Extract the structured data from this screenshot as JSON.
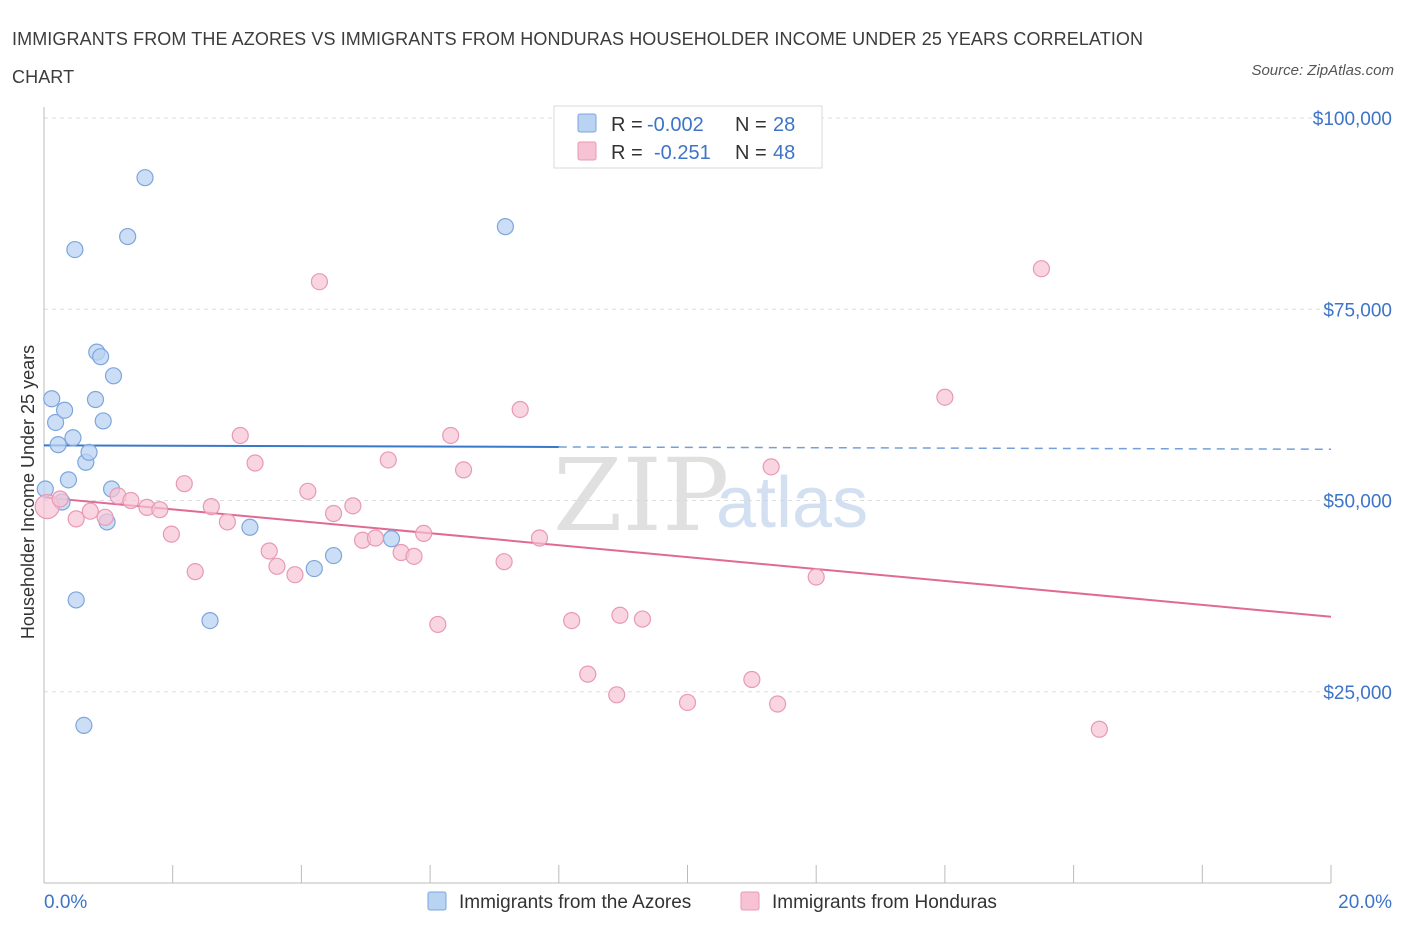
{
  "title": "IMMIGRANTS FROM THE AZORES VS IMMIGRANTS FROM HONDURAS HOUSEHOLDER INCOME UNDER 25 YEARS CORRELATION CHART",
  "source": "Source: ZipAtlas.com",
  "watermark": {
    "zip": "ZIP",
    "atlas": "atlas"
  },
  "colors": {
    "azores_fill": "#b9d3f3",
    "azores_stroke": "#7da6dc",
    "azores_line": "#3a78c9",
    "honduras_fill": "#f7c3d4",
    "honduras_stroke": "#e899b4",
    "honduras_line": "#e06a95",
    "tick_label": "#3d74c8",
    "grid": "#dddddd"
  },
  "legend": {
    "rows": [
      {
        "r_label": "R =",
        "r_value": "-0.002",
        "n_label": "N =",
        "n_value": "28"
      },
      {
        "r_label": "R =",
        "r_value": "-0.251",
        "n_label": "N =",
        "n_value": "48"
      }
    ]
  },
  "chart_data": {
    "type": "scatter",
    "title": "IMMIGRANTS FROM THE AZORES VS IMMIGRANTS FROM HONDURAS HOUSEHOLDER INCOME UNDER 25 YEARS CORRELATION CHART",
    "xlabel": "",
    "ylabel": "Householder Income Under 25 years",
    "xlim": [
      0,
      20
    ],
    "ylim": [
      0,
      100000
    ],
    "x_tick_labels": [
      "0.0%",
      "20.0%"
    ],
    "y_ticks": [
      25000,
      50000,
      75000,
      100000
    ],
    "y_tick_labels": [
      "$25,000",
      "$50,000",
      "$75,000",
      "$100,000"
    ],
    "grid": true,
    "legend_position": "top-center",
    "series": [
      {
        "name": "Immigrants from the Azores",
        "r": -0.002,
        "n": 28,
        "trend": {
          "x": [
            0,
            8
          ],
          "y": [
            57200,
            57000
          ],
          "dashed_extension_to_x": 20
        },
        "points": [
          {
            "x": 0.02,
            "y": 51500
          },
          {
            "x": 0.12,
            "y": 63300
          },
          {
            "x": 0.18,
            "y": 60200
          },
          {
            "x": 0.22,
            "y": 57300
          },
          {
            "x": 0.28,
            "y": 49800
          },
          {
            "x": 0.32,
            "y": 61800
          },
          {
            "x": 0.38,
            "y": 52700
          },
          {
            "x": 0.45,
            "y": 58200
          },
          {
            "x": 0.5,
            "y": 37000
          },
          {
            "x": 0.48,
            "y": 82800
          },
          {
            "x": 0.62,
            "y": 20600
          },
          {
            "x": 0.65,
            "y": 55000
          },
          {
            "x": 0.7,
            "y": 56300
          },
          {
            "x": 0.8,
            "y": 63200
          },
          {
            "x": 0.82,
            "y": 69400
          },
          {
            "x": 0.88,
            "y": 68800
          },
          {
            "x": 0.92,
            "y": 60400
          },
          {
            "x": 0.98,
            "y": 47200
          },
          {
            "x": 1.05,
            "y": 51500
          },
          {
            "x": 1.08,
            "y": 66300
          },
          {
            "x": 1.3,
            "y": 84500
          },
          {
            "x": 1.57,
            "y": 92200
          },
          {
            "x": 2.58,
            "y": 34300
          },
          {
            "x": 3.2,
            "y": 46500
          },
          {
            "x": 4.2,
            "y": 41100
          },
          {
            "x": 4.5,
            "y": 42800
          },
          {
            "x": 5.4,
            "y": 45000
          },
          {
            "x": 7.17,
            "y": 85800
          }
        ]
      },
      {
        "name": "Immigrants from Honduras",
        "r": -0.251,
        "n": 48,
        "trend": {
          "x": [
            0,
            20
          ],
          "y": [
            50400,
            34800
          ]
        },
        "points": [
          {
            "x": 0.05,
            "y": 49200
          },
          {
            "x": 0.25,
            "y": 50200
          },
          {
            "x": 0.5,
            "y": 47600
          },
          {
            "x": 0.72,
            "y": 48600
          },
          {
            "x": 0.95,
            "y": 47800
          },
          {
            "x": 1.15,
            "y": 50600
          },
          {
            "x": 1.35,
            "y": 50000
          },
          {
            "x": 1.6,
            "y": 49100
          },
          {
            "x": 1.8,
            "y": 48800
          },
          {
            "x": 1.98,
            "y": 45600
          },
          {
            "x": 2.18,
            "y": 52200
          },
          {
            "x": 2.35,
            "y": 40700
          },
          {
            "x": 2.6,
            "y": 49200
          },
          {
            "x": 2.85,
            "y": 47200
          },
          {
            "x": 3.05,
            "y": 58500
          },
          {
            "x": 3.28,
            "y": 54900
          },
          {
            "x": 3.5,
            "y": 43400
          },
          {
            "x": 3.62,
            "y": 41400
          },
          {
            "x": 3.9,
            "y": 40300
          },
          {
            "x": 4.1,
            "y": 51200
          },
          {
            "x": 4.28,
            "y": 78600
          },
          {
            "x": 4.5,
            "y": 48300
          },
          {
            "x": 4.8,
            "y": 49300
          },
          {
            "x": 4.95,
            "y": 44800
          },
          {
            "x": 5.15,
            "y": 45100
          },
          {
            "x": 5.35,
            "y": 55300
          },
          {
            "x": 5.55,
            "y": 43200
          },
          {
            "x": 5.75,
            "y": 42700
          },
          {
            "x": 5.9,
            "y": 45700
          },
          {
            "x": 6.12,
            "y": 33800
          },
          {
            "x": 6.32,
            "y": 58500
          },
          {
            "x": 6.52,
            "y": 54000
          },
          {
            "x": 7.15,
            "y": 42000
          },
          {
            "x": 7.4,
            "y": 61900
          },
          {
            "x": 7.7,
            "y": 45100
          },
          {
            "x": 8.2,
            "y": 34300
          },
          {
            "x": 8.45,
            "y": 27300
          },
          {
            "x": 8.9,
            "y": 24600
          },
          {
            "x": 8.95,
            "y": 35000
          },
          {
            "x": 9.3,
            "y": 34500
          },
          {
            "x": 10.0,
            "y": 23600
          },
          {
            "x": 11.0,
            "y": 26600
          },
          {
            "x": 11.3,
            "y": 54400
          },
          {
            "x": 11.4,
            "y": 23400
          },
          {
            "x": 12.0,
            "y": 40000
          },
          {
            "x": 14.0,
            "y": 63500
          },
          {
            "x": 15.5,
            "y": 80300
          },
          {
            "x": 16.4,
            "y": 20100
          }
        ]
      }
    ]
  }
}
